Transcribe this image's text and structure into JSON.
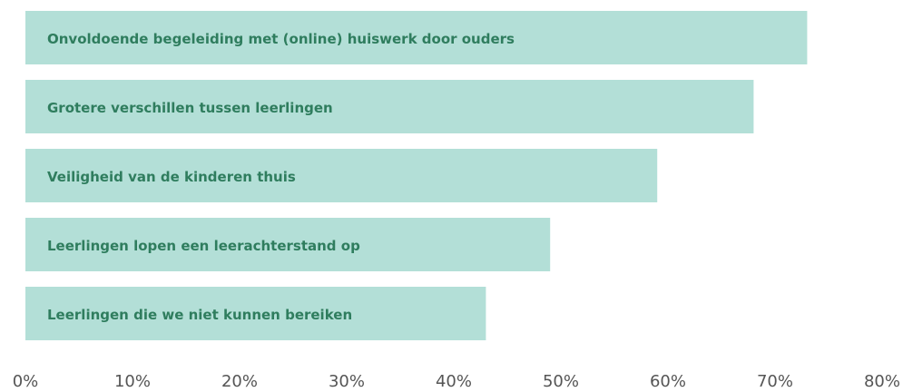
{
  "chart_data": {
    "type": "bar",
    "orientation": "horizontal",
    "categories": [
      "Onvoldoende begeleiding met (online) huiswerk door ouders",
      "Grotere verschillen tussen leerlingen",
      "Veiligheid van de kinderen thuis",
      "Leerlingen lopen een leerachterstand op",
      "Leerlingen die we niet kunnen bereiken"
    ],
    "values": [
      73,
      68,
      59,
      49,
      43
    ],
    "color": "#b3dfd7",
    "xlim": [
      0,
      80
    ],
    "xticks": [
      {
        "value": 0,
        "label": "0%"
      },
      {
        "value": 10,
        "label": "10%"
      },
      {
        "value": 20,
        "label": "20%"
      },
      {
        "value": 30,
        "label": "30%"
      },
      {
        "value": 40,
        "label": "40%"
      },
      {
        "value": 50,
        "label": "50%"
      },
      {
        "value": 60,
        "label": "60%"
      },
      {
        "value": 70,
        "label": "70%"
      },
      {
        "value": 80,
        "label": "80%"
      }
    ],
    "grid": false
  }
}
